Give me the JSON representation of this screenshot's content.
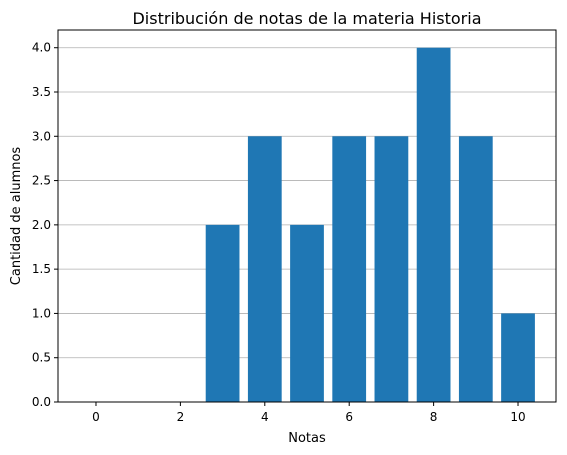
{
  "chart_data": {
    "type": "bar",
    "title": "Distribución de notas de la materia Historia",
    "xlabel": "Notas",
    "ylabel": "Cantidad de alumnos",
    "x": [
      0,
      1,
      2,
      3,
      4,
      5,
      6,
      7,
      8,
      9,
      10
    ],
    "values": [
      0,
      0,
      0,
      2,
      3,
      2,
      3,
      3,
      4,
      3,
      1
    ],
    "xlim": [
      -0.9,
      10.9
    ],
    "ylim": [
      0,
      4.2
    ],
    "xticks": [
      0,
      2,
      4,
      6,
      8,
      10
    ],
    "xtick_labels": [
      "0",
      "2",
      "4",
      "6",
      "8",
      "10"
    ],
    "yticks": [
      0,
      0.5,
      1,
      1.5,
      2,
      2.5,
      3,
      3.5,
      4
    ],
    "ytick_labels": [
      "0.0",
      "0.5",
      "1.0",
      "1.5",
      "2.0",
      "2.5",
      "3.0",
      "3.5",
      "4.0"
    ],
    "grid": "horizontal",
    "bar_color": "#1f77b4"
  }
}
